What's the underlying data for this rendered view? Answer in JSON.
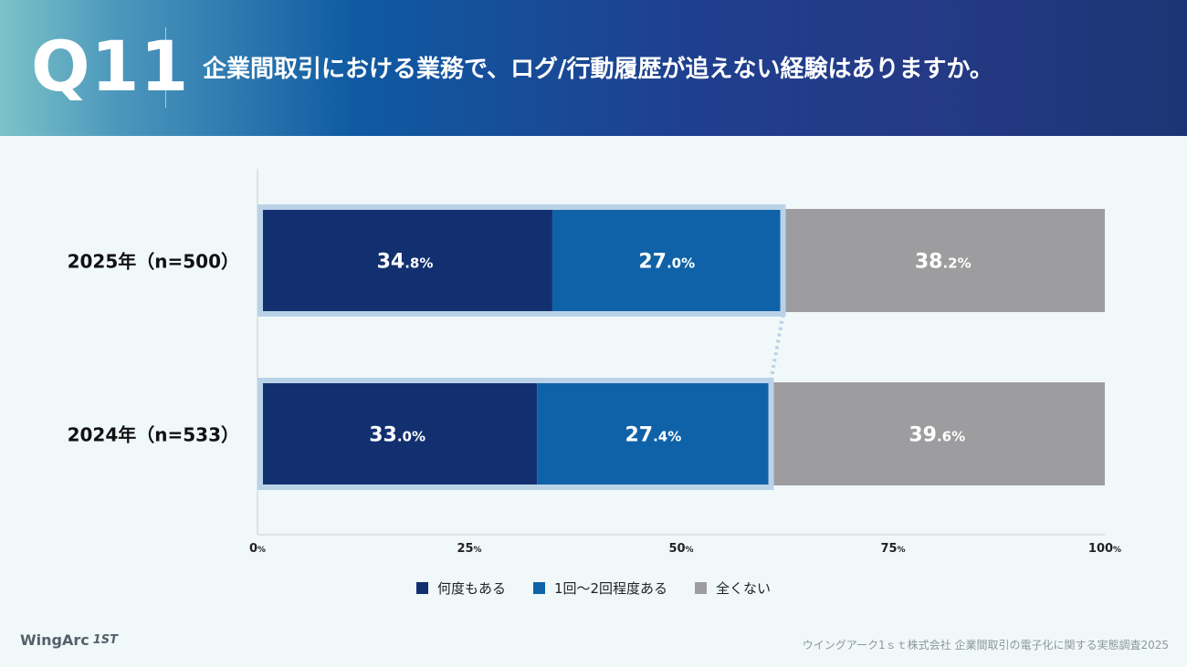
{
  "header": {
    "qnum": "Q11",
    "question": "企業間取引における業務で、ログ/行動履歴が追えない経験はありますか。"
  },
  "colors": {
    "series_1": "#12306f",
    "series_2": "#0f62a8",
    "series_3": "#9d9d9f",
    "highlight": "#b9d2e8"
  },
  "chart_data": {
    "type": "bar",
    "orientation": "horizontal",
    "stacked": true,
    "categories": [
      "2025年（n=500）",
      "2024年（n=533）"
    ],
    "series": [
      {
        "name": "何度もある",
        "values": [
          34.8,
          33.0
        ],
        "labels": [
          [
            "34",
            ".8%"
          ],
          [
            "33",
            ".0%"
          ]
        ]
      },
      {
        "name": "1回〜2回程度ある",
        "values": [
          27.0,
          27.4
        ],
        "labels": [
          [
            "27",
            ".0%"
          ],
          [
            "27",
            ".4%"
          ]
        ]
      },
      {
        "name": "全くない",
        "values": [
          38.2,
          39.6
        ],
        "labels": [
          [
            "38",
            ".2%"
          ],
          [
            "39",
            ".6%"
          ]
        ]
      }
    ],
    "xlim": [
      0,
      100
    ],
    "ticks": [
      {
        "value": 0,
        "num": "0",
        "unit": "%"
      },
      {
        "value": 25,
        "num": "25",
        "unit": "%"
      },
      {
        "value": 50,
        "num": "50",
        "unit": "%"
      },
      {
        "value": 75,
        "num": "75",
        "unit": "%"
      },
      {
        "value": 100,
        "num": "100",
        "unit": "%"
      }
    ],
    "highlight": "何度もある + 1回〜2回程度ある（合計）"
  },
  "footer": {
    "logo_text": "WingArc",
    "logo_mark": "1ST",
    "source": "ウイングアーク1ｓｔ株式会社 企業間取引の電子化に関する実態調査2025"
  }
}
